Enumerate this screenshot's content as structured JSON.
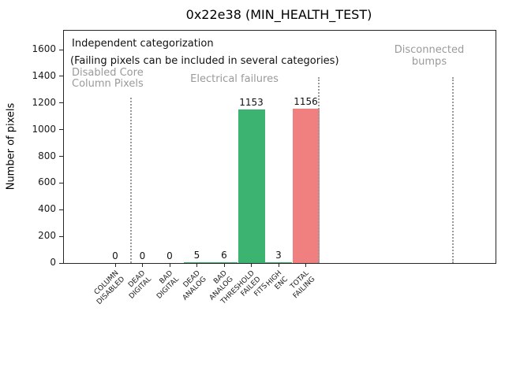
{
  "figure": {
    "title": "0x22e38 (MIN_HEALTH_TEST)"
  },
  "annotations": {
    "line1": "Independent categorization",
    "line2": "(Failing pixels can be included in several categories)"
  },
  "sections": [
    {
      "name": "disabled-core-column-pixels",
      "lines": [
        "Disabled Core",
        "Column Pixels"
      ]
    },
    {
      "name": "electrical-failures",
      "lines": [
        "Electrical failures"
      ]
    },
    {
      "name": "disconnected-bumps",
      "lines": [
        "Disconnected",
        "bumps"
      ]
    }
  ],
  "colors": {
    "bar_green": "#3cb371",
    "bar_red": "#f08080",
    "muted_text": "#9a9a9a",
    "separator_line": "#999999"
  },
  "chart_data": {
    "type": "bar",
    "title": "0x22e38 (MIN_HEALTH_TEST)",
    "ylabel": "Number of pixels",
    "categories": [
      "COLUMN DISABLED",
      "DEAD DIGITAL",
      "BAD DIGITAL",
      "DEAD ANALOG",
      "BAD ANALOG",
      "THRESHOLD FAILED FITS",
      "HIGH ENC",
      "TOTAL FAILING"
    ],
    "category_label_lines": [
      [
        "COLUMN",
        "DISABLED"
      ],
      [
        "DEAD",
        "DIGITAL"
      ],
      [
        "BAD",
        "DIGITAL"
      ],
      [
        "DEAD",
        "ANALOG"
      ],
      [
        "BAD",
        "ANALOG"
      ],
      [
        "THRESHOLD",
        "FAILED",
        "FITS"
      ],
      [
        "HIGH",
        "ENC"
      ],
      [
        "TOTAL",
        "FAILING"
      ]
    ],
    "values": [
      0,
      0,
      0,
      5,
      6,
      1153,
      3,
      1156
    ],
    "value_labels": [
      "0",
      "0",
      "0",
      "5",
      "6",
      "1153",
      "3",
      "1156"
    ],
    "bar_colors": [
      "#3cb371",
      "#3cb371",
      "#3cb371",
      "#3cb371",
      "#3cb371",
      "#3cb371",
      "#3cb371",
      "#f08080"
    ],
    "yticks": [
      0,
      200,
      400,
      600,
      800,
      1000,
      1200,
      1400,
      1600
    ],
    "ylim": [
      0,
      1742
    ],
    "grid": false,
    "legend": false,
    "section_labels": [
      "Disabled Core Column Pixels",
      "Electrical failures",
      "Disconnected bumps"
    ]
  }
}
